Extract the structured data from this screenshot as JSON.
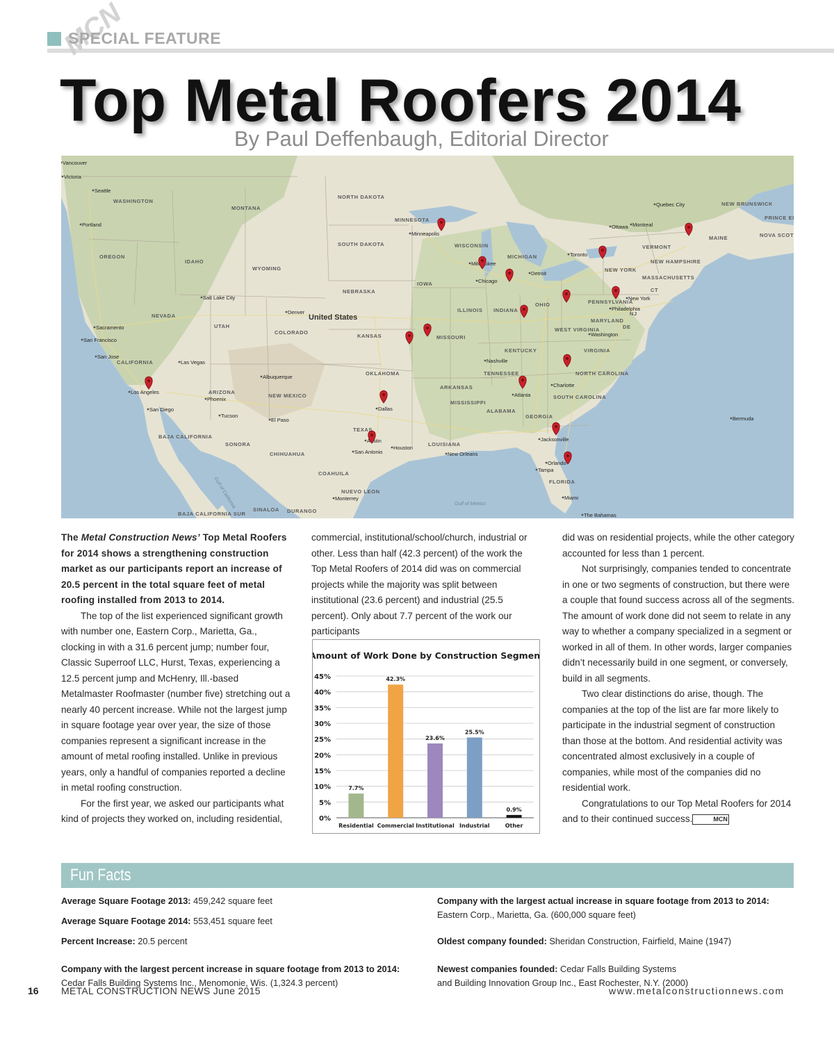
{
  "header": {
    "section_label": "SPECIAL FEATURE",
    "watermark": "MCN",
    "title": "Top Metal Roofers 2014",
    "byline": "By Paul Deffenbaugh, Editorial Director"
  },
  "map": {
    "country_label": "United States",
    "states": [
      "WASHINGTON",
      "OREGON",
      "IDAHO",
      "MONTANA",
      "WYOMING",
      "NEVADA",
      "UTAH",
      "COLORADO",
      "CALIFORNIA",
      "ARIZONA",
      "NEW MEXICO",
      "NORTH DAKOTA",
      "SOUTH DAKOTA",
      "NEBRASKA",
      "KANSAS",
      "OKLAHOMA",
      "TEXAS",
      "MINNESOTA",
      "IOWA",
      "MISSOURI",
      "ARKANSAS",
      "LOUISIANA",
      "WISCONSIN",
      "ILLINOIS",
      "MISSISSIPPI",
      "MICHIGAN",
      "INDIANA",
      "OHIO",
      "KENTUCKY",
      "TENNESSEE",
      "ALABAMA",
      "GEORGIA",
      "FLORIDA",
      "SOUTH CAROLINA",
      "NORTH CAROLINA",
      "VIRGINIA",
      "WEST VIRGINIA",
      "PENNSYLVANIA",
      "NEW YORK",
      "VERMONT",
      "NEW HAMPSHIRE",
      "MAINE",
      "MASSACHUSETTS",
      "MARYLAND",
      "DE",
      "NJ",
      "CT",
      "NEW BRUNSWICK",
      "PRINCE EDWARD ISLAND",
      "NOVA SCOTIA",
      "BAJA CALIFORNIA",
      "SONORA",
      "CHIHUAHUA",
      "COAHUILA",
      "NUEVO LEON",
      "SINALOA",
      "DURANGO",
      "BAJA CALIFORNIA SUR"
    ],
    "cities": [
      "Vancouver",
      "Victoria",
      "Seattle",
      "Portland",
      "Sacramento",
      "San Francisco",
      "San Jose",
      "Las Vegas",
      "Los Angeles",
      "San Diego",
      "Phoenix",
      "Tucson",
      "El Paso",
      "Albuquerque",
      "Denver",
      "Salt Lake City",
      "Minneapolis",
      "Milwaukee",
      "Chicago",
      "Detroit",
      "Toronto",
      "Ottawa",
      "Montreal",
      "Quebec City",
      "New York",
      "Philadelphia",
      "Washington",
      "Nashville",
      "Charlotte",
      "Atlanta",
      "Dallas",
      "Austin",
      "San Antonio",
      "Houston",
      "New Orleans",
      "Jacksonville",
      "Orlando",
      "Tampa",
      "Miami",
      "Monterrey",
      "Bermuda",
      "The Bahamas"
    ],
    "water": [
      "Gulf of California",
      "Gulf of Mexico"
    ],
    "pins": 18
  },
  "article": {
    "col1": {
      "lead_a": "The ",
      "lead_italic": "Metal Construction News’",
      "lead_b": " Top Metal Roofers for 2014 shows a strengthening construction market as our participants report an increase of 20.5 percent in the total square feet of metal roofing installed from 2013 to 2014.",
      "p2": "The top of the list experienced significant growth with number one, Eastern Corp., Marietta, Ga., clocking in with a 31.6 percent jump; number four, Classic Superroof LLC, Hurst, Texas, experiencing a 12.5 percent jump and McHenry, Ill.-based Metalmaster Roofmaster (number five) stretching out a nearly 40 percent increase. While not the largest jump in square footage year over year, the size of those companies represent a significant increase in the amount of metal roofing installed. Unlike in previous years, only a handful of companies reported a decline in metal roofing construction.",
      "p3": "For the first year, we asked our participants what kind of projects they worked on, including residential,"
    },
    "col2": {
      "p1": "commercial, institutional/school/church, industrial or other. Less than half (42.3 percent) of the work the Top Metal Roofers of 2014 did was on commercial projects while the majority was split between institutional (23.6 percent) and industrial (25.5 percent). Only about 7.7 percent of the work our participants"
    },
    "col3": {
      "p1": "did was on residential projects, while the other category accounted for less than 1 percent.",
      "p2": "Not surprisingly, companies tended to concentrate in one or two segments of construction, but there were a couple that found success across all of the segments. The amount of work done did not seem to relate in any way to whether a company specialized in a segment or worked in all of them. In other words, larger companies didn’t necessarily build in one segment, or conversely, build in all segments.",
      "p3": "Two clear distinctions do arise, though. The companies at the top of the list are far more likely to participate in the industrial segment of construction than those at the bottom. And residential activity was concentrated almost exclusively in a couple of companies, while most of the companies did no residential work.",
      "p4": "Congratulations to our Top Metal Roofers for 2014 and to their continued success.",
      "end_mark": "MCN"
    }
  },
  "chart_data": {
    "type": "bar",
    "title": "Amount of Work Done by Construction Segment",
    "categories": [
      "Residential",
      "Commercial",
      "Institutional",
      "Industrial",
      "Other"
    ],
    "values": [
      7.7,
      42.3,
      23.6,
      25.5,
      0.9
    ],
    "value_labels": [
      "7.7%",
      "42.3%",
      "23.6%",
      "25.5%",
      "0.9%"
    ],
    "colors": [
      "#a3b78d",
      "#f0a446",
      "#9d87be",
      "#7d9ec5",
      "#1a1a1a"
    ],
    "yticks": [
      "0%",
      "5%",
      "10%",
      "15%",
      "20%",
      "25%",
      "30%",
      "35%",
      "40%",
      "45%"
    ],
    "ylim": [
      0,
      45
    ],
    "grid": true
  },
  "fun_facts": {
    "title": "Fun Facts",
    "left": [
      {
        "label": "Average Square Footage 2013:",
        "value": " 459,242 square feet"
      },
      {
        "label": "Average Square Footage 2014:",
        "value": " 553,451 square feet"
      },
      {
        "label": "Percent Increase:",
        "value": " 20.5 percent"
      },
      {
        "label": "Company with the largest percent increase in square footage from 2013 to 2014:",
        "value": "Cedar Falls Building Systems Inc., Menomonie, Wis. (1,324.3 percent)"
      }
    ],
    "right": [
      {
        "label": "Company with the largest actual increase in square footage from 2013 to 2014:",
        "value": "Eastern Corp., Marietta, Ga. (600,000 square feet)"
      },
      {
        "label": "Oldest company founded:",
        "value": " Sheridan Construction, Fairfield, Maine (1947)"
      },
      {
        "label": "Newest companies founded:",
        "value": " Cedar Falls Building Systems",
        "value2": "and Building Innovation Group Inc., East Rochester, N.Y. (2000)"
      }
    ]
  },
  "footer": {
    "page_number": "16",
    "publication": "METAL CONSTRUCTION NEWS  June 2015",
    "website": "www.metalconstructionnews.com"
  }
}
